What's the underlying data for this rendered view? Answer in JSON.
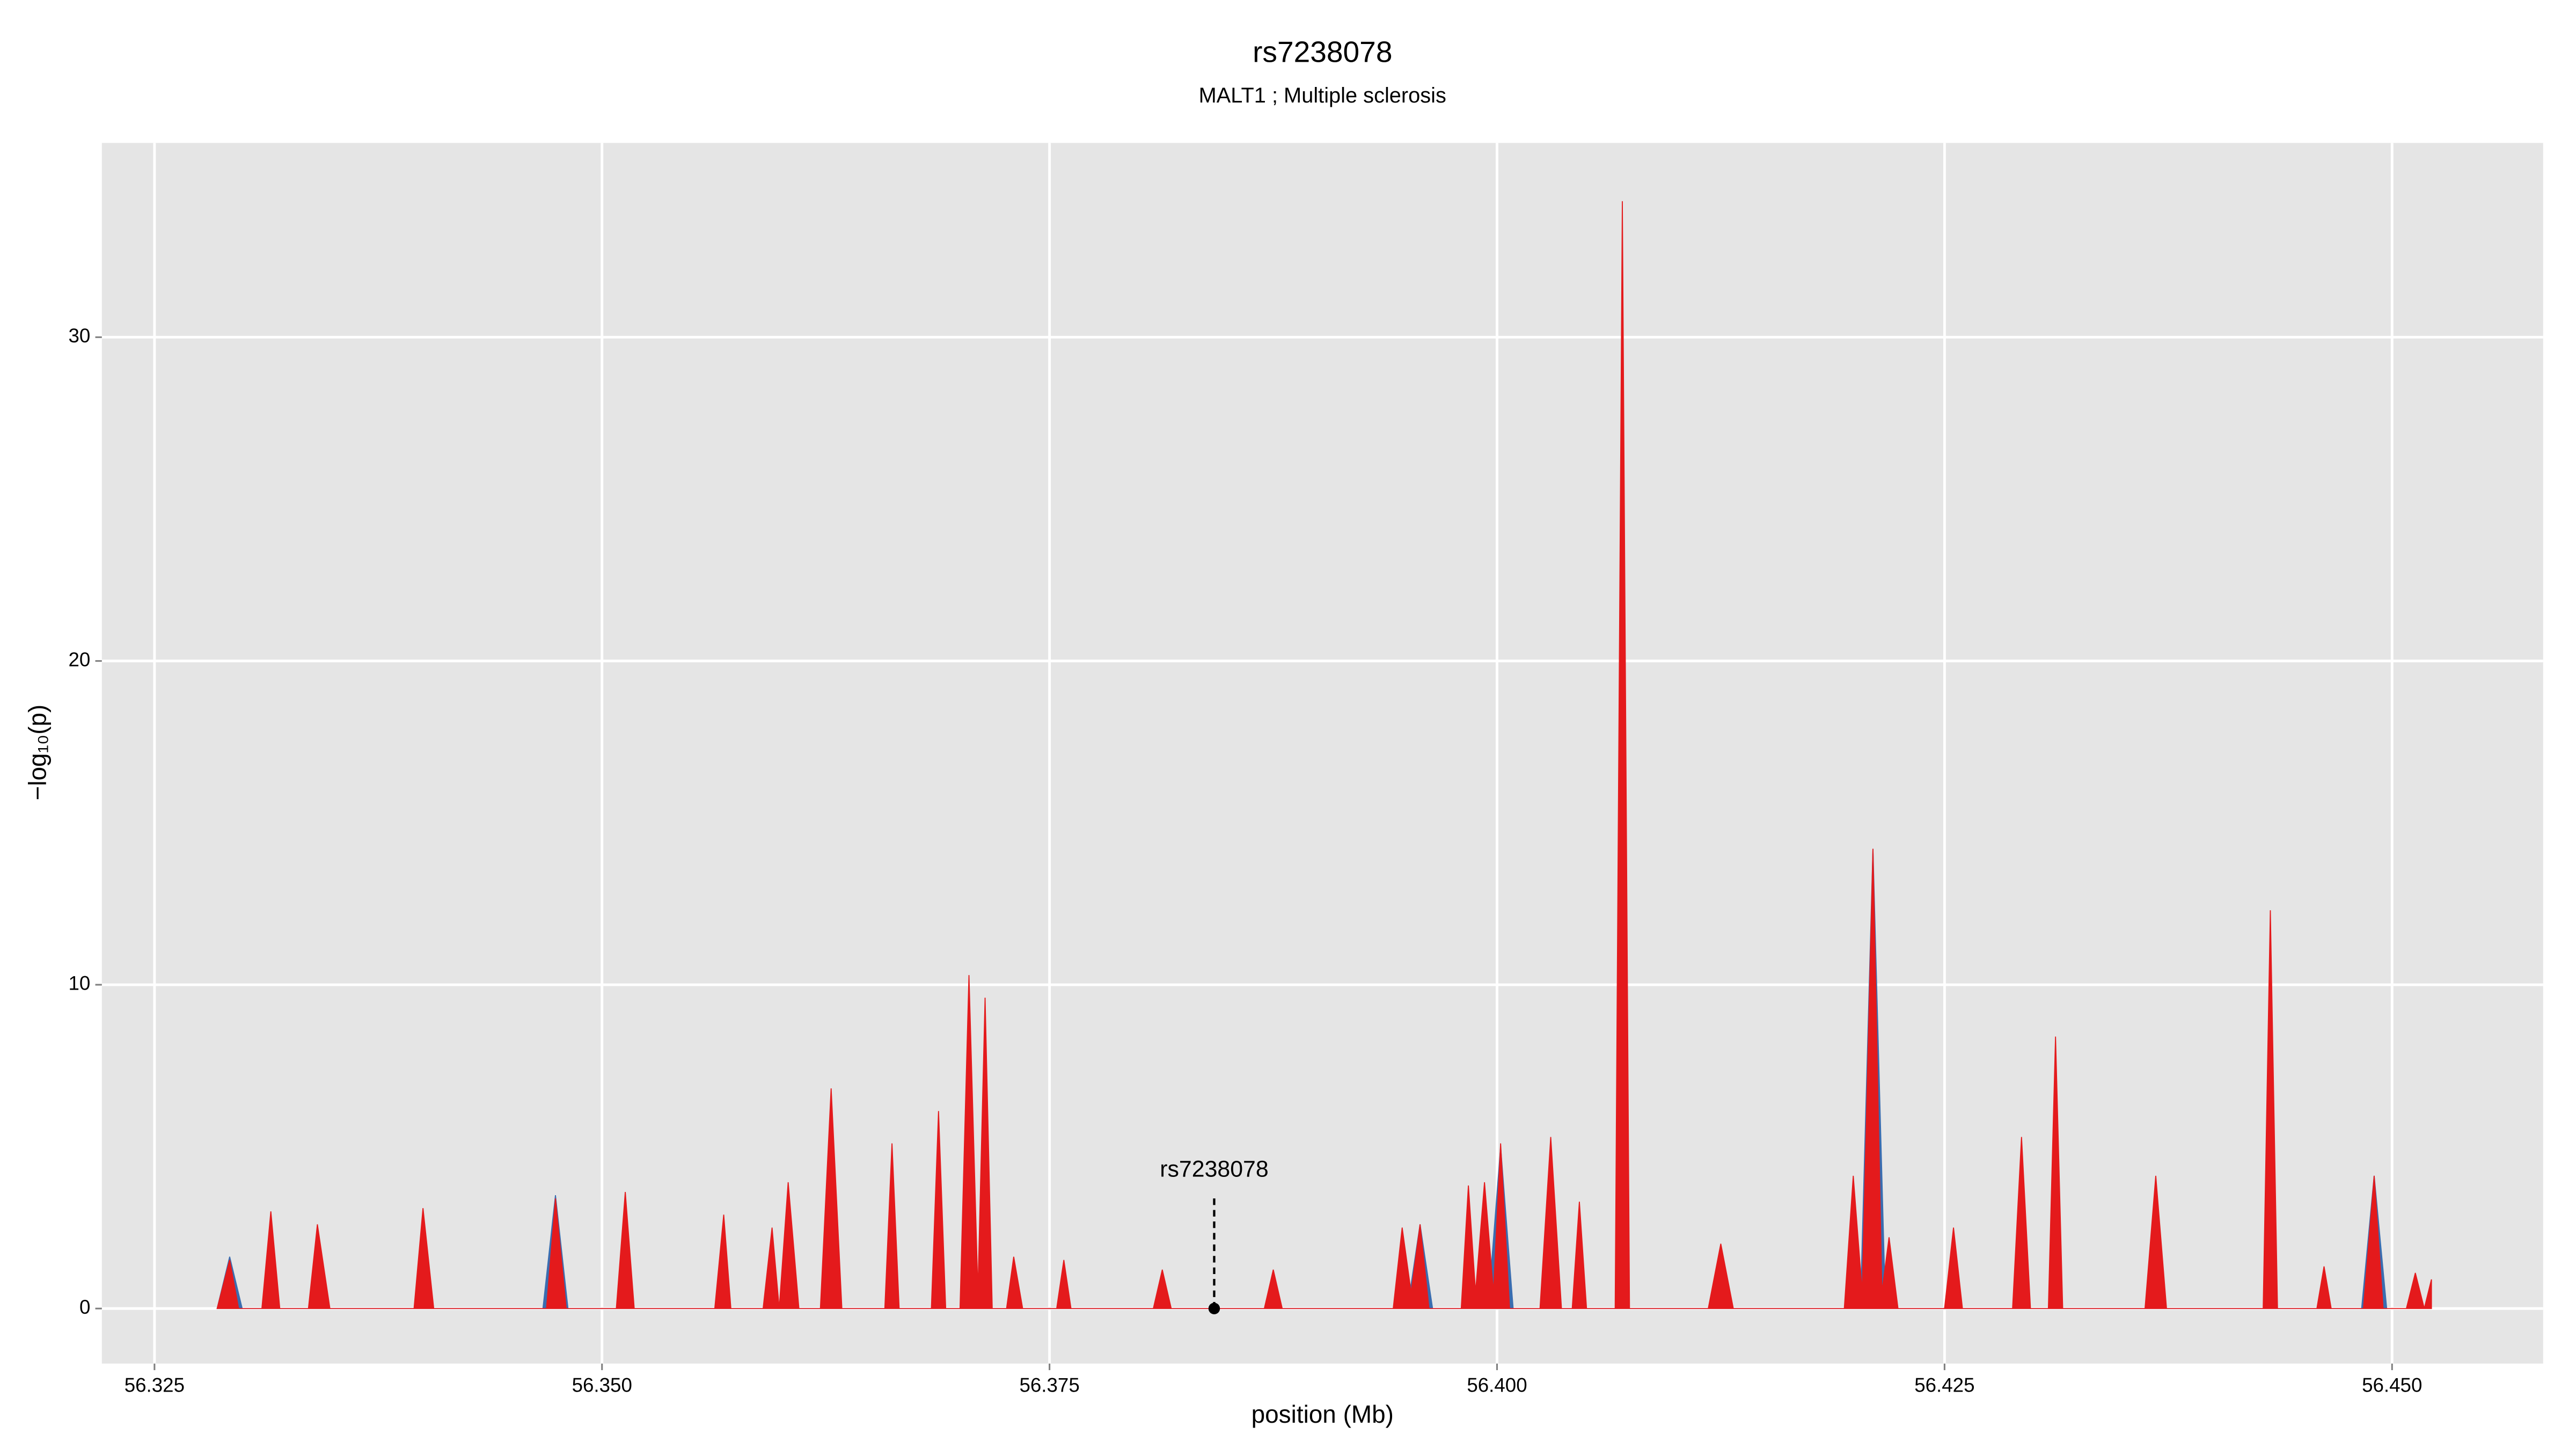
{
  "chart_data": {
    "type": "area",
    "title": "rs7238078",
    "subtitle": "MALT1 ; Multiple sclerosis",
    "x_label": "position (Mb)",
    "y_label": "−log₁₀(p)",
    "xlim": [
      56.32206,
      56.45844
    ],
    "ylim": [
      -1.7,
      36
    ],
    "xticks": [
      56.325,
      {
        "value": 56.35,
        "label": "56.350"
      },
      56.375,
      {
        "value": 56.4,
        "label": "56.400"
      },
      56.425,
      {
        "value": 56.45,
        "label": "56.450"
      }
    ],
    "yticks": [
      0,
      10,
      20,
      30
    ],
    "grid": true,
    "series": [
      {
        "color": "#3a6db0",
        "x": [
          56.3285,
          56.3292,
          56.3299,
          56.3467,
          56.3474,
          56.3481,
          56.395,
          56.3957,
          56.3964,
          56.3995,
          56.4002,
          56.4009,
          56.4203,
          56.421,
          56.4217,
          56.4483,
          56.449,
          56.4497
        ],
        "values": [
          0,
          1.6,
          0,
          0,
          3.5,
          0,
          0,
          2.6,
          0,
          0,
          5.0,
          0,
          0,
          14.2,
          0,
          0,
          4.1,
          0
        ]
      },
      {
        "color": "#e41a1c",
        "x": [
          56.3285,
          56.3292,
          56.3297,
          56.331,
          56.3315,
          56.332,
          56.3336,
          56.3341,
          56.3348,
          56.3395,
          56.34,
          56.3406,
          56.3469,
          56.3474,
          56.348,
          56.3508,
          56.3513,
          56.3518,
          56.3563,
          56.3568,
          56.3572,
          56.359,
          56.3595,
          56.3599,
          56.3604,
          56.361,
          56.3622,
          56.3628,
          56.3634,
          56.3658,
          56.3662,
          56.3666,
          56.3684,
          56.3688,
          56.3692,
          56.37,
          56.3705,
          56.371,
          56.3714,
          56.3718,
          56.3726,
          56.373,
          56.3735,
          56.3754,
          56.3758,
          56.3762,
          56.3808,
          56.3813,
          56.3818,
          56.387,
          56.3875,
          56.388,
          56.3942,
          56.3947,
          56.3952,
          56.3957,
          56.3962,
          56.398,
          56.3984,
          56.3988,
          56.3993,
          56.3998,
          56.4002,
          56.4007,
          56.4024,
          56.403,
          56.4036,
          56.4042,
          56.4046,
          56.405,
          56.4066,
          56.407,
          56.4074,
          56.4118,
          56.4125,
          56.4132,
          56.4194,
          56.4199,
          56.4204,
          56.421,
          56.4215,
          56.4219,
          56.4224,
          56.425,
          56.4255,
          56.426,
          56.4288,
          56.4293,
          56.4298,
          56.4308,
          56.4312,
          56.4316,
          56.4362,
          56.4368,
          56.4374,
          56.4428,
          56.4432,
          56.4436,
          56.4458,
          56.4462,
          56.4466,
          56.4484,
          56.449,
          56.4495,
          56.4508,
          56.4513,
          56.4518,
          56.4522
        ],
        "values": [
          0,
          1.5,
          0,
          0,
          3,
          0,
          0,
          2.6,
          0,
          0,
          3.1,
          0,
          0,
          3.4,
          0,
          0,
          3.6,
          0,
          0,
          2.9,
          0,
          0,
          2.5,
          0,
          3.9,
          0,
          0,
          6.8,
          0,
          0,
          5.1,
          0,
          0,
          6.1,
          0,
          0,
          10.3,
          0.5,
          9.6,
          0,
          0,
          1.6,
          0,
          0,
          1.5,
          0,
          0,
          1.2,
          0,
          0,
          1.2,
          0,
          0,
          2.5,
          0.5,
          2.6,
          0,
          0,
          3.8,
          0.5,
          3.9,
          0.5,
          5.1,
          0,
          0,
          5.3,
          0,
          0,
          3.3,
          0,
          0,
          34.2,
          0,
          0,
          2.0,
          0,
          0,
          4.1,
          0.5,
          14.2,
          0.5,
          2.2,
          0,
          0,
          2.5,
          0,
          0,
          5.3,
          0,
          0,
          8.4,
          0,
          0,
          4.1,
          0,
          0,
          12.3,
          0,
          0,
          1.3,
          0,
          0,
          4.1,
          0,
          0,
          1.1,
          0,
          0.9
        ]
      }
    ],
    "annotation": {
      "text": "rs7238078",
      "x": 56.3842,
      "y": 0
    }
  }
}
